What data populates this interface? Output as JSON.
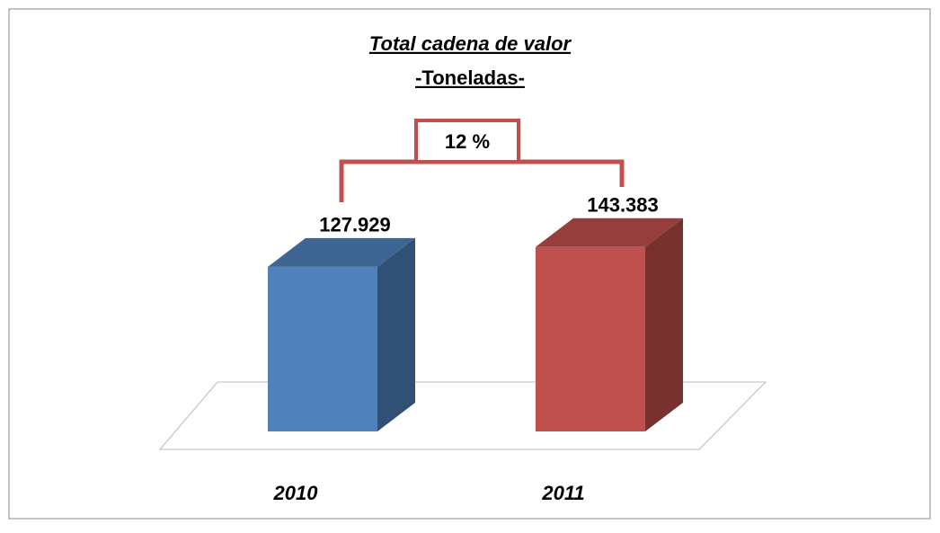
{
  "chart_data": {
    "type": "bar3d",
    "title": "Total cadena de valor",
    "subtitle": "-Toneladas-",
    "categories": [
      "2010",
      "2011"
    ],
    "values": [
      127929,
      143383
    ],
    "value_labels": [
      "127.929",
      "143.383"
    ],
    "colors": [
      "#4f81bd",
      "#c0504d"
    ],
    "ylim": [
      0,
      160000
    ],
    "annotation": "12 %"
  }
}
